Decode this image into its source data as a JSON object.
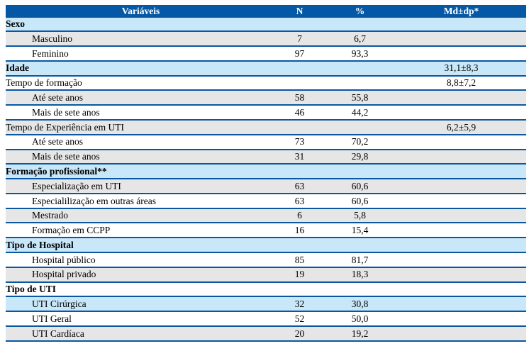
{
  "colors": {
    "header_bg": "#0458a5",
    "header_text": "#ffffff",
    "border_blue": "#0a57a0",
    "band_blue": "#c8e7f9",
    "band_gray": "#e6e6e6",
    "body_text": "#000000"
  },
  "table": {
    "columns": [
      "Variáveis",
      "N",
      "%",
      "Md±dp*"
    ],
    "rows": [
      {
        "label": "Sexo",
        "n": "",
        "pct": "",
        "md": "",
        "bold": true,
        "indent": false,
        "bg": "blue"
      },
      {
        "label": "Masculino",
        "n": "7",
        "pct": "6,7",
        "md": "",
        "bold": false,
        "indent": true,
        "bg": "gray"
      },
      {
        "label": "Feminino",
        "n": "97",
        "pct": "93,3",
        "md": "",
        "bold": false,
        "indent": true,
        "bg": "white"
      },
      {
        "label": "Idade",
        "n": "",
        "pct": "",
        "md": "31,1±8,3",
        "bold": true,
        "indent": false,
        "bg": "blue"
      },
      {
        "label": "Tempo de formação",
        "n": "",
        "pct": "",
        "md": "8,8±7,2",
        "bold": false,
        "indent": false,
        "bg": "white"
      },
      {
        "label": "Até sete anos",
        "n": "58",
        "pct": "55,8",
        "md": "",
        "bold": false,
        "indent": true,
        "bg": "gray"
      },
      {
        "label": "Mais de sete anos",
        "n": "46",
        "pct": "44,2",
        "md": "",
        "bold": false,
        "indent": true,
        "bg": "white"
      },
      {
        "label": "Tempo de Experiência em UTI",
        "n": "",
        "pct": "",
        "md": "6,2±5,9",
        "bold": false,
        "indent": false,
        "bg": "gray"
      },
      {
        "label": "Até sete anos",
        "n": "73",
        "pct": "70,2",
        "md": "",
        "bold": false,
        "indent": true,
        "bg": "white"
      },
      {
        "label": "Mais de sete anos",
        "n": "31",
        "pct": "29,8",
        "md": "",
        "bold": false,
        "indent": true,
        "bg": "gray"
      },
      {
        "label": "Formação profissional**",
        "n": "",
        "pct": "",
        "md": "",
        "bold": true,
        "indent": false,
        "bg": "blue"
      },
      {
        "label": "Especialização em UTI",
        "n": "63",
        "pct": "60,6",
        "md": "",
        "bold": false,
        "indent": true,
        "bg": "gray"
      },
      {
        "label": "Especialilização em outras áreas",
        "n": "63",
        "pct": "60,6",
        "md": "",
        "bold": false,
        "indent": true,
        "bg": "white"
      },
      {
        "label": "Mestrado",
        "n": "6",
        "pct": "5,8",
        "md": "",
        "bold": false,
        "indent": true,
        "bg": "gray"
      },
      {
        "label": "Formação em CCPP",
        "n": "16",
        "pct": "15,4",
        "md": "",
        "bold": false,
        "indent": true,
        "bg": "white"
      },
      {
        "label": "Tipo de Hospital",
        "n": "",
        "pct": "",
        "md": "",
        "bold": true,
        "indent": false,
        "bg": "blue"
      },
      {
        "label": "Hospital público",
        "n": "85",
        "pct": "81,7",
        "md": "",
        "bold": false,
        "indent": true,
        "bg": "white"
      },
      {
        "label": "Hospital privado",
        "n": "19",
        "pct": "18,3",
        "md": "",
        "bold": false,
        "indent": true,
        "bg": "gray"
      },
      {
        "label": "Tipo de UTI",
        "n": "",
        "pct": "",
        "md": "",
        "bold": true,
        "indent": false,
        "bg": "white"
      },
      {
        "label": "UTI Cirúrgica",
        "n": "32",
        "pct": "30,8",
        "md": "",
        "bold": false,
        "indent": true,
        "bg": "blue"
      },
      {
        "label": "UTI Geral",
        "n": "52",
        "pct": "50,0",
        "md": "",
        "bold": false,
        "indent": true,
        "bg": "white"
      },
      {
        "label": "UTI Cardíaca",
        "n": "20",
        "pct": "19,2",
        "md": "",
        "bold": false,
        "indent": true,
        "bg": "gray"
      }
    ]
  }
}
